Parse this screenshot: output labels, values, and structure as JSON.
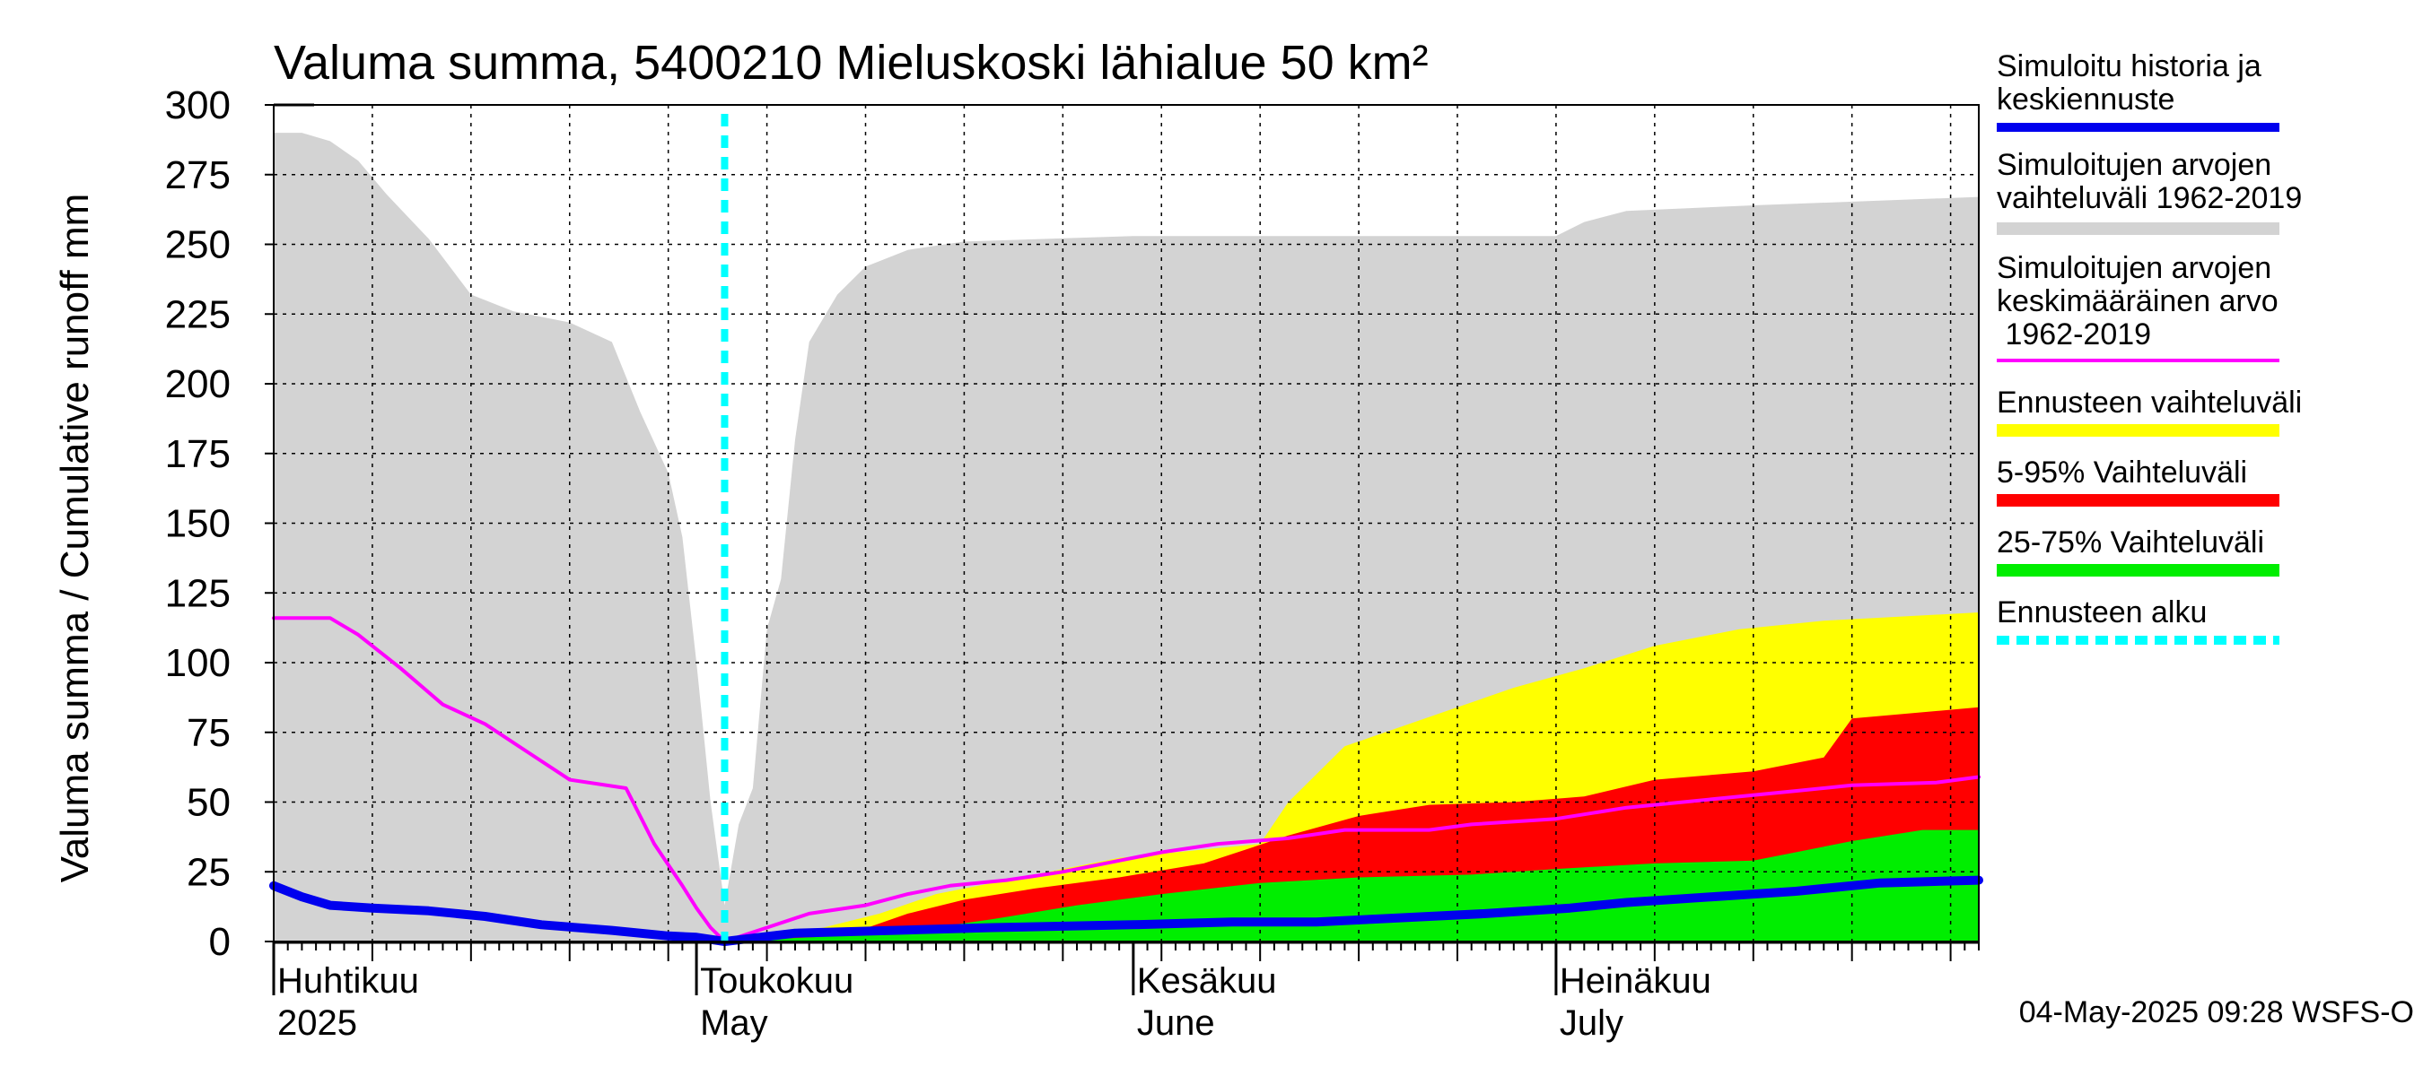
{
  "chart_data": {
    "type": "area",
    "title": "Valuma summa, 5400210 Mieluskoski lähialue 50 km²",
    "ylabel": "Valuma summa / Cumulative runoff    mm",
    "ylim": [
      0,
      300
    ],
    "yticks": [
      0,
      25,
      50,
      75,
      100,
      125,
      150,
      175,
      200,
      225,
      250,
      275,
      300
    ],
    "xlim": [
      "2025-04-01",
      "2025-07-31"
    ],
    "month_labels": [
      {
        "date": "2025-04-01",
        "line1": "Huhtikuu",
        "line2": "2025"
      },
      {
        "date": "2025-05-01",
        "line1": "Toukokuu",
        "line2": "May"
      },
      {
        "date": "2025-06-01",
        "line1": "Kesäkuu",
        "line2": "June"
      },
      {
        "date": "2025-07-01",
        "line1": "Heinäkuu",
        "line2": "July"
      }
    ],
    "forecast_start": "2025-05-03",
    "grid": true,
    "legend_position": "right",
    "legend": [
      {
        "key": "sim",
        "text": "Simuloitu historia ja\nkeskiennuste",
        "color": "#0000ee",
        "style": "line"
      },
      {
        "key": "range_hist",
        "text": "Simuloitujen arvojen\nvaihteluväli 1962-2019",
        "color": "#d3d3d3",
        "style": "band"
      },
      {
        "key": "mean_hist",
        "text": "Simuloitujen arvojen\nkeskimääräinen arvo\n   1962-2019",
        "color": "#ff00ff",
        "style": "line"
      },
      {
        "key": "fc_range",
        "text": "Ennusteen vaihteluväli",
        "color": "#ffff00",
        "style": "band"
      },
      {
        "key": "p5_95",
        "text": "5-95% Vaihteluväli",
        "color": "#ff0000",
        "style": "band"
      },
      {
        "key": "p25_75",
        "text": "25-75% Vaihteluväli",
        "color": "#00ee00",
        "style": "band"
      },
      {
        "key": "fc_start",
        "text": "Ennusteen alku",
        "color": "#00ffff",
        "style": "dash"
      }
    ],
    "series": {
      "hist_range_upper": [
        [
          "2025-04-01",
          290
        ],
        [
          "2025-04-03",
          290
        ],
        [
          "2025-04-05",
          287
        ],
        [
          "2025-04-07",
          280
        ],
        [
          "2025-04-09",
          268
        ],
        [
          "2025-04-12",
          252
        ],
        [
          "2025-04-15",
          232
        ],
        [
          "2025-04-18",
          226
        ],
        [
          "2025-04-22",
          222
        ],
        [
          "2025-04-25",
          215
        ],
        [
          "2025-04-27",
          190
        ],
        [
          "2025-04-29",
          168
        ],
        [
          "2025-04-30",
          145
        ],
        [
          "2025-05-01",
          100
        ],
        [
          "2025-05-02",
          50
        ],
        [
          "2025-05-03",
          13
        ],
        [
          "2025-05-04",
          42
        ],
        [
          "2025-05-05",
          55
        ],
        [
          "2025-05-06",
          112
        ],
        [
          "2025-05-07",
          130
        ],
        [
          "2025-05-08",
          180
        ],
        [
          "2025-05-09",
          215
        ],
        [
          "2025-05-11",
          232
        ],
        [
          "2025-05-13",
          242
        ],
        [
          "2025-05-16",
          248
        ],
        [
          "2025-05-20",
          251
        ],
        [
          "2025-06-01",
          253
        ],
        [
          "2025-06-15",
          253
        ],
        [
          "2025-07-01",
          253
        ],
        [
          "2025-07-03",
          258
        ],
        [
          "2025-07-06",
          262
        ],
        [
          "2025-07-15",
          264
        ],
        [
          "2025-07-31",
          267
        ]
      ],
      "hist_range_lower": [
        [
          "2025-04-01",
          0
        ],
        [
          "2025-07-31",
          0
        ]
      ],
      "hist_mean": [
        [
          "2025-04-01",
          116
        ],
        [
          "2025-04-05",
          116
        ],
        [
          "2025-04-07",
          110
        ],
        [
          "2025-04-10",
          98
        ],
        [
          "2025-04-13",
          85
        ],
        [
          "2025-04-16",
          78
        ],
        [
          "2025-04-19",
          68
        ],
        [
          "2025-04-22",
          58
        ],
        [
          "2025-04-26",
          55
        ],
        [
          "2025-04-28",
          35
        ],
        [
          "2025-04-30",
          20
        ],
        [
          "2025-05-01",
          12
        ],
        [
          "2025-05-02",
          5
        ],
        [
          "2025-05-03",
          0
        ],
        [
          "2025-05-06",
          5
        ],
        [
          "2025-05-09",
          10
        ],
        [
          "2025-05-13",
          13
        ],
        [
          "2025-05-16",
          17
        ],
        [
          "2025-05-19",
          20
        ],
        [
          "2025-05-23",
          22
        ],
        [
          "2025-05-27",
          25
        ],
        [
          "2025-05-31",
          29
        ],
        [
          "2025-06-03",
          32
        ],
        [
          "2025-06-07",
          35
        ],
        [
          "2025-06-12",
          37
        ],
        [
          "2025-06-16",
          40
        ],
        [
          "2025-06-22",
          40
        ],
        [
          "2025-06-25",
          42
        ],
        [
          "2025-07-01",
          44
        ],
        [
          "2025-07-06",
          48
        ],
        [
          "2025-07-12",
          51
        ],
        [
          "2025-07-18",
          54
        ],
        [
          "2025-07-22",
          56
        ],
        [
          "2025-07-28",
          57
        ],
        [
          "2025-07-31",
          59
        ]
      ],
      "fc_range_upper": [
        [
          "2025-05-03",
          0
        ],
        [
          "2025-05-10",
          5
        ],
        [
          "2025-05-14",
          10
        ],
        [
          "2025-05-18",
          17
        ],
        [
          "2025-05-24",
          23
        ],
        [
          "2025-05-31",
          30
        ],
        [
          "2025-06-06",
          33
        ],
        [
          "2025-06-10",
          35
        ],
        [
          "2025-06-12",
          50
        ],
        [
          "2025-06-16",
          70
        ],
        [
          "2025-06-20",
          77
        ],
        [
          "2025-06-24",
          84
        ],
        [
          "2025-06-28",
          91
        ],
        [
          "2025-07-03",
          98
        ],
        [
          "2025-07-08",
          106
        ],
        [
          "2025-07-14",
          112
        ],
        [
          "2025-07-20",
          115
        ],
        [
          "2025-07-31",
          118
        ]
      ],
      "fc_range_lower": [
        [
          "2025-05-03",
          0
        ],
        [
          "2025-07-31",
          0
        ]
      ],
      "p5_95_upper": [
        [
          "2025-05-03",
          0
        ],
        [
          "2025-05-12",
          3
        ],
        [
          "2025-05-16",
          10
        ],
        [
          "2025-05-20",
          15
        ],
        [
          "2025-05-25",
          19
        ],
        [
          "2025-05-31",
          23
        ],
        [
          "2025-06-06",
          28
        ],
        [
          "2025-06-12",
          38
        ],
        [
          "2025-06-17",
          45
        ],
        [
          "2025-06-22",
          49
        ],
        [
          "2025-06-28",
          50
        ],
        [
          "2025-07-03",
          52
        ],
        [
          "2025-07-08",
          58
        ],
        [
          "2025-07-15",
          61
        ],
        [
          "2025-07-20",
          66
        ],
        [
          "2025-07-22",
          80
        ],
        [
          "2025-07-31",
          84
        ]
      ],
      "p5_95_lower": [
        [
          "2025-05-03",
          0
        ],
        [
          "2025-07-31",
          0
        ]
      ],
      "p25_75_upper": [
        [
          "2025-05-03",
          0
        ],
        [
          "2025-05-15",
          3
        ],
        [
          "2025-05-22",
          8
        ],
        [
          "2025-05-28",
          13
        ],
        [
          "2025-06-03",
          17
        ],
        [
          "2025-06-10",
          21
        ],
        [
          "2025-06-17",
          23
        ],
        [
          "2025-06-25",
          24
        ],
        [
          "2025-07-01",
          26
        ],
        [
          "2025-07-08",
          28
        ],
        [
          "2025-07-15",
          29
        ],
        [
          "2025-07-18",
          32
        ],
        [
          "2025-07-22",
          36
        ],
        [
          "2025-07-27",
          40
        ],
        [
          "2025-07-31",
          40
        ]
      ],
      "p25_75_lower": [
        [
          "2025-05-03",
          0
        ],
        [
          "2025-07-31",
          0
        ]
      ],
      "sim": [
        [
          "2025-04-01",
          20
        ],
        [
          "2025-04-03",
          16
        ],
        [
          "2025-04-05",
          13
        ],
        [
          "2025-04-08",
          12
        ],
        [
          "2025-04-12",
          11
        ],
        [
          "2025-04-16",
          9
        ],
        [
          "2025-04-20",
          6
        ],
        [
          "2025-04-25",
          4
        ],
        [
          "2025-04-29",
          2
        ],
        [
          "2025-05-01",
          1.5
        ],
        [
          "2025-05-03",
          0
        ],
        [
          "2025-05-08",
          3
        ],
        [
          "2025-05-15",
          4
        ],
        [
          "2025-05-22",
          5
        ],
        [
          "2025-06-01",
          6
        ],
        [
          "2025-06-08",
          7
        ],
        [
          "2025-06-14",
          7
        ],
        [
          "2025-06-18",
          8
        ],
        [
          "2025-06-22",
          9
        ],
        [
          "2025-06-26",
          10
        ],
        [
          "2025-07-02",
          12
        ],
        [
          "2025-07-06",
          14
        ],
        [
          "2025-07-12",
          16
        ],
        [
          "2025-07-18",
          18
        ],
        [
          "2025-07-24",
          21
        ],
        [
          "2025-07-31",
          22
        ]
      ]
    }
  },
  "timestamp": "04-May-2025 09:28 WSFS-O"
}
